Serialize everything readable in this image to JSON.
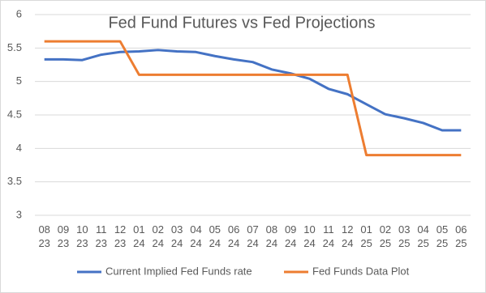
{
  "chart_data": {
    "type": "line",
    "title": "Fed Fund Futures vs Fed Projections",
    "categories": [
      [
        "08",
        "23"
      ],
      [
        "09",
        "23"
      ],
      [
        "10",
        "23"
      ],
      [
        "11",
        "23"
      ],
      [
        "12",
        "23"
      ],
      [
        "01",
        "24"
      ],
      [
        "02",
        "24"
      ],
      [
        "03",
        "24"
      ],
      [
        "04",
        "24"
      ],
      [
        "05",
        "24"
      ],
      [
        "06",
        "24"
      ],
      [
        "07",
        "24"
      ],
      [
        "08",
        "24"
      ],
      [
        "09",
        "24"
      ],
      [
        "10",
        "24"
      ],
      [
        "11",
        "24"
      ],
      [
        "12",
        "24"
      ],
      [
        "01",
        "25"
      ],
      [
        "02",
        "25"
      ],
      [
        "03",
        "25"
      ],
      [
        "04",
        "25"
      ],
      [
        "05",
        "25"
      ],
      [
        "06",
        "25"
      ]
    ],
    "series": [
      {
        "name": "Current Implied Fed Funds rate",
        "color": "#4472c4",
        "values": [
          5.33,
          5.33,
          5.32,
          5.4,
          5.44,
          5.45,
          5.47,
          5.45,
          5.44,
          5.38,
          5.33,
          5.29,
          5.18,
          5.12,
          5.04,
          4.89,
          4.81,
          4.66,
          4.51,
          4.45,
          4.38,
          4.27,
          4.27
        ]
      },
      {
        "name": "Fed Funds Data Plot",
        "color": "#ed7d31",
        "values": [
          5.6,
          5.6,
          5.6,
          5.6,
          5.6,
          5.1,
          5.1,
          5.1,
          5.1,
          5.1,
          5.1,
          5.1,
          5.1,
          5.1,
          5.1,
          5.1,
          5.1,
          3.9,
          3.9,
          3.9,
          3.9,
          3.9,
          3.9
        ]
      }
    ],
    "ylim": [
      3,
      6
    ],
    "yticks": [
      3,
      3.5,
      4,
      4.5,
      5,
      5.5,
      6
    ],
    "grid": true
  }
}
